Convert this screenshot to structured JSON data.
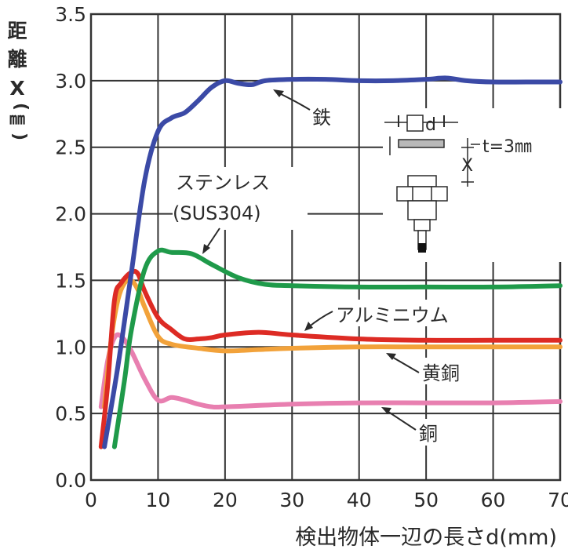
{
  "chart_data": {
    "type": "line",
    "xlabel": "検出物体一辺の長さd(mm)",
    "ylabel": [
      "距",
      "離",
      "X",
      "㎜"
    ],
    "xlim": [
      0,
      70
    ],
    "ylim": [
      0.0,
      3.5
    ],
    "x_ticks": [
      "0",
      "10",
      "20",
      "30",
      "40",
      "50",
      "60",
      "70"
    ],
    "y_ticks": [
      "0.0",
      "0.5",
      "1.0",
      "1.5",
      "2.0",
      "2.5",
      "3.0",
      "3.5"
    ],
    "grid": true,
    "series": [
      {
        "name": "鉄",
        "color": "#3b4aa6",
        "points": [
          [
            2,
            0.25
          ],
          [
            4,
            0.85
          ],
          [
            6,
            1.55
          ],
          [
            8,
            2.25
          ],
          [
            10,
            2.62
          ],
          [
            12,
            2.72
          ],
          [
            14,
            2.76
          ],
          [
            16,
            2.85
          ],
          [
            18,
            2.95
          ],
          [
            20,
            3.0
          ],
          [
            22,
            2.98
          ],
          [
            24,
            2.97
          ],
          [
            26,
            3.0
          ],
          [
            30,
            3.01
          ],
          [
            35,
            3.01
          ],
          [
            40,
            3.0
          ],
          [
            45,
            3.0
          ],
          [
            50,
            3.01
          ],
          [
            53,
            3.02
          ],
          [
            56,
            3.0
          ],
          [
            60,
            2.99
          ],
          [
            65,
            2.99
          ],
          [
            70,
            2.99
          ]
        ]
      },
      {
        "name": "ステンレス(SUS304)",
        "color": "#1f9a4a",
        "points": [
          [
            3.5,
            0.25
          ],
          [
            5,
            0.75
          ],
          [
            6,
            1.12
          ],
          [
            8,
            1.58
          ],
          [
            10,
            1.72
          ],
          [
            12,
            1.71
          ],
          [
            15,
            1.7
          ],
          [
            18,
            1.62
          ],
          [
            22,
            1.52
          ],
          [
            26,
            1.47
          ],
          [
            30,
            1.46
          ],
          [
            40,
            1.45
          ],
          [
            50,
            1.45
          ],
          [
            60,
            1.45
          ],
          [
            70,
            1.46
          ]
        ]
      },
      {
        "name": "アルミニウム",
        "color": "#dd2b24",
        "points": [
          [
            1.5,
            0.25
          ],
          [
            2.5,
            0.72
          ],
          [
            3.5,
            1.35
          ],
          [
            4.5,
            1.48
          ],
          [
            6,
            1.56
          ],
          [
            7,
            1.55
          ],
          [
            8,
            1.42
          ],
          [
            10,
            1.22
          ],
          [
            12,
            1.13
          ],
          [
            14,
            1.06
          ],
          [
            16,
            1.06
          ],
          [
            18,
            1.07
          ],
          [
            20,
            1.09
          ],
          [
            25,
            1.11
          ],
          [
            30,
            1.09
          ],
          [
            40,
            1.06
          ],
          [
            50,
            1.05
          ],
          [
            60,
            1.05
          ],
          [
            70,
            1.05
          ]
        ]
      },
      {
        "name": "黄銅",
        "color": "#f2a23a",
        "points": [
          [
            2,
            0.55
          ],
          [
            3,
            1.05
          ],
          [
            4,
            1.35
          ],
          [
            5,
            1.48
          ],
          [
            6,
            1.5
          ],
          [
            7,
            1.43
          ],
          [
            8,
            1.3
          ],
          [
            10,
            1.08
          ],
          [
            12,
            1.02
          ],
          [
            16,
            0.99
          ],
          [
            20,
            0.97
          ],
          [
            25,
            0.98
          ],
          [
            30,
            0.99
          ],
          [
            40,
            1.0
          ],
          [
            50,
            1.0
          ],
          [
            60,
            1.0
          ],
          [
            70,
            1.0
          ]
        ]
      },
      {
        "name": "銅",
        "color": "#e87fb0",
        "points": [
          [
            1.5,
            0.55
          ],
          [
            2.5,
            0.9
          ],
          [
            3.5,
            1.07
          ],
          [
            4.5,
            1.08
          ],
          [
            6,
            0.97
          ],
          [
            8,
            0.76
          ],
          [
            10,
            0.6
          ],
          [
            12,
            0.62
          ],
          [
            14,
            0.6
          ],
          [
            16,
            0.57
          ],
          [
            18,
            0.55
          ],
          [
            20,
            0.55
          ],
          [
            30,
            0.57
          ],
          [
            40,
            0.58
          ],
          [
            50,
            0.58
          ],
          [
            60,
            0.58
          ],
          [
            70,
            0.59
          ]
        ]
      }
    ],
    "annotations": {
      "iron": "鉄",
      "stainless_1": "ステンレス",
      "stainless_2": "(SUS304)",
      "aluminum": "アルミニウム",
      "brass": "黄銅",
      "copper": "銅"
    },
    "inset": {
      "d_label": "d",
      "t_label": "t=3㎜",
      "x_label": "X"
    }
  }
}
